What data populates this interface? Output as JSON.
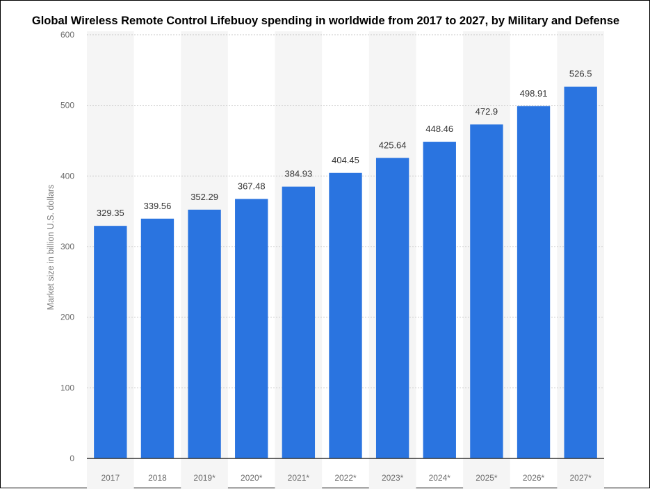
{
  "chart_data": {
    "type": "bar",
    "title": "Global Wireless Remote Control Lifebuoy spending in worldwide from 2017 to 2027, by Military and Defense",
    "xlabel": "",
    "ylabel": "Market size in billion U.S. dollars",
    "categories": [
      "2017",
      "2018",
      "2019*",
      "2020*",
      "2021*",
      "2022*",
      "2023*",
      "2024*",
      "2025*",
      "2026*",
      "2027*"
    ],
    "values": [
      329.35,
      339.56,
      352.29,
      367.48,
      384.93,
      404.45,
      425.64,
      448.46,
      472.9,
      498.91,
      526.5
    ],
    "value_labels": [
      "329.35",
      "339.56",
      "352.29",
      "367.48",
      "384.93",
      "404.45",
      "425.64",
      "448.46",
      "472.9",
      "498.91",
      "526.5"
    ],
    "ylim": [
      0,
      600
    ],
    "yticks": [
      "0",
      "100",
      "200",
      "300",
      "400",
      "500",
      "600"
    ],
    "grid": true,
    "bar_color": "#2a74e0",
    "stripe_color": "#f5f5f5",
    "grid_color": "#c8c8c8"
  }
}
